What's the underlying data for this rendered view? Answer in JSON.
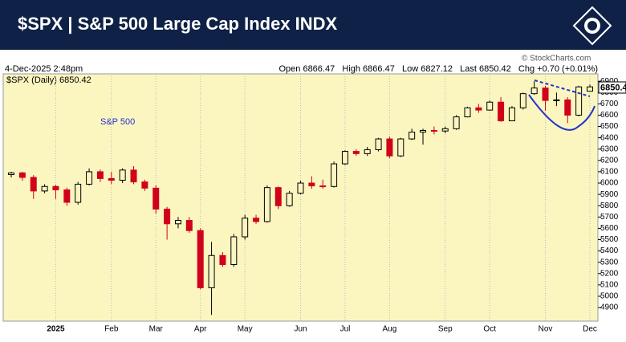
{
  "header": {
    "title": "$SPX | S&P 500 Large Cap Index INDX"
  },
  "chart_data": {
    "type": "candlestick",
    "date_label": "4-Dec-2025 2:48pm",
    "quote_line": "Open 6866.47   High 6866.47   Low 6827.12   Last 6850.42   Chg +0.70 (+0.01%)",
    "copyright": "© StockCharts.com",
    "legend": "$SPX (Daily) 6850.42",
    "annotation": "S&P 500",
    "last_tag": "6850.4",
    "up_color": "#000000",
    "down_color": "#d0021b",
    "grid": true,
    "categories": [
      null,
      null,
      null,
      null,
      "2025",
      null,
      null,
      null,
      null,
      "Feb",
      null,
      null,
      null,
      "Mar",
      null,
      null,
      null,
      "Apr",
      null,
      null,
      null,
      "May",
      null,
      null,
      null,
      null,
      "Jun",
      null,
      null,
      null,
      "Jul",
      null,
      null,
      null,
      "Aug",
      null,
      null,
      null,
      null,
      "Sep",
      null,
      null,
      null,
      "Oct",
      null,
      null,
      null,
      null,
      "Nov",
      null,
      null,
      null,
      "Dec"
    ],
    "open": [
      6075,
      6090,
      6050,
      5930,
      5970,
      5940,
      5830,
      5990,
      6100,
      6040,
      6025,
      6115,
      6010,
      5955,
      5770,
      5640,
      5670,
      5580,
      5075,
      5360,
      5280,
      5525,
      5690,
      5660,
      5960,
      5800,
      5910,
      6000,
      5975,
      5970,
      6170,
      6280,
      6260,
      6295,
      6390,
      6240,
      6390,
      6450,
      6465,
      6460,
      6480,
      6585,
      6665,
      6645,
      6715,
      6550,
      6665,
      6790,
      6840,
      6730,
      6735,
      6600,
      6812
    ],
    "high": [
      6100,
      6100,
      6070,
      5990,
      5985,
      5960,
      6010,
      6130,
      6120,
      6100,
      6130,
      6150,
      6030,
      5980,
      5790,
      5700,
      5700,
      5600,
      5480,
      5390,
      5550,
      5720,
      5720,
      5980,
      5970,
      5930,
      6020,
      6060,
      6030,
      6190,
      6290,
      6300,
      6320,
      6400,
      6410,
      6400,
      6480,
      6480,
      6500,
      6500,
      6600,
      6675,
      6700,
      6730,
      6760,
      6680,
      6800,
      6900,
      6860,
      6800,
      6760,
      6860,
      6870
    ],
    "low": [
      6050,
      6020,
      5860,
      5910,
      5860,
      5800,
      5810,
      5980,
      6010,
      5990,
      6000,
      5990,
      5930,
      5730,
      5500,
      5600,
      5560,
      5060,
      4835,
      5260,
      5260,
      5500,
      5640,
      5650,
      5770,
      5790,
      5900,
      5950,
      5950,
      5960,
      6160,
      6240,
      6240,
      6280,
      6220,
      6230,
      6380,
      6340,
      6430,
      6440,
      6470,
      6580,
      6620,
      6640,
      6540,
      6550,
      6650,
      6780,
      6640,
      6680,
      6530,
      6590,
      6820
    ],
    "close": [
      6090,
      6050,
      5930,
      5970,
      5940,
      5830,
      5990,
      6100,
      6040,
      6025,
      6115,
      6010,
      5955,
      5770,
      5640,
      5670,
      5580,
      5075,
      5360,
      5280,
      5525,
      5690,
      5660,
      5960,
      5800,
      5910,
      6000,
      5975,
      5970,
      6170,
      6280,
      6260,
      6295,
      6390,
      6240,
      6390,
      6450,
      6465,
      6460,
      6480,
      6585,
      6665,
      6645,
      6715,
      6550,
      6665,
      6790,
      6840,
      6730,
      6735,
      6600,
      6850,
      6850
    ],
    "ylim": [
      4780,
      6965
    ],
    "yticks": [
      4900,
      5000,
      5100,
      5200,
      5300,
      5400,
      5500,
      5600,
      5700,
      5800,
      5900,
      6000,
      6100,
      6200,
      6300,
      6400,
      6500,
      6600,
      6700,
      6800,
      6900
    ]
  }
}
